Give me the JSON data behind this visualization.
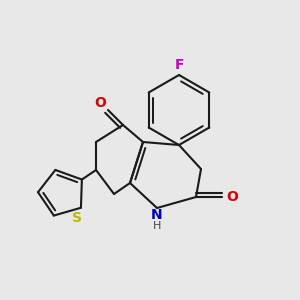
{
  "background_color": "#e8e8e8",
  "bond_color": "#1a1a1a",
  "atom_colors": {
    "F": "#cc00cc",
    "O": "#dd0000",
    "N": "#0000cc",
    "S": "#bbbb00",
    "H": "#444444",
    "C": "#1a1a1a"
  },
  "figsize": [
    3.0,
    3.0
  ],
  "dpi": 100,
  "lw": 1.5
}
